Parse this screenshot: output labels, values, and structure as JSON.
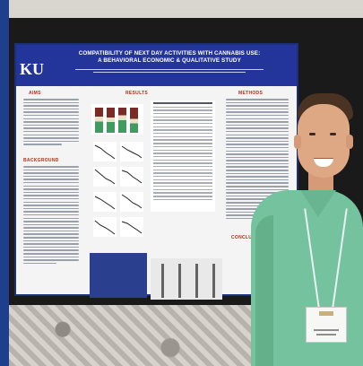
{
  "poster": {
    "logo": "KU",
    "title_line1": "COMPATIBILITY OF NEXT DAY ACTIVITIES WITH CANNABIS USE:",
    "title_line2": "A BEHAVIORAL ECONOMIC & QUALITATIVE STUDY",
    "sections": {
      "aims": "AIMS",
      "results": "RESULTS",
      "methods": "METHODS",
      "background": "BACKGROUND",
      "conclusions": "CONCLUSIONS"
    }
  },
  "colors": {
    "poster_header": "#23349a",
    "section_heading": "#b3301a",
    "shirt": "#75c39e",
    "frame_blue": "#1d3f8c"
  }
}
